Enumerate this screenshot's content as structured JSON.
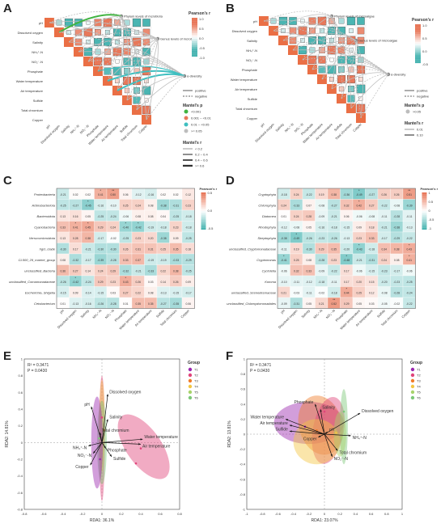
{
  "panel_labels": [
    "A",
    "B",
    "C",
    "D",
    "E",
    "F"
  ],
  "legend_text": {
    "pearson_title": "Pearson's r",
    "mantel_p_title": "Mantel's p",
    "mantel_r_title": "Mantel's r",
    "positive": "positive",
    "negative": "negative"
  },
  "panel_A": {
    "top_targets": [
      "Phylum levels of mcrobiota",
      "Genus levels of mcrobiota",
      "α-diversity"
    ],
    "colorbar_ticks": [
      "1.0",
      "0.5",
      "0.0",
      "-0.5",
      "-1.0"
    ],
    "mantel_p_levels": [
      "<0.001",
      "0.001 ~ <0.01",
      "0.01 ~ <0.05",
      ">= 0.05"
    ],
    "mantel_r_levels": [
      "< 0.2",
      "0.2 ~ 0.4",
      "0.4 ~ 0.6",
      ">= 0.6"
    ]
  },
  "panel_B": {
    "top_targets": [
      "Phylum levels of microalgae",
      "Genus levels of microalgae",
      "α-diversity"
    ],
    "colorbar_ticks": [
      "1.0",
      "0.5",
      "0.0",
      "-0.5"
    ],
    "mantel_p_levels": [
      ">0.05"
    ],
    "mantel_r_levels": [
      "0.01",
      "0.10"
    ]
  },
  "env_factors": [
    "pH",
    "Dissolved oxygen",
    "Salinity",
    "NH₄⁺-N",
    "NO₂⁻-N",
    "Phosphate",
    "Water temperature",
    "Air temperature",
    "Sulfide",
    "Total chromium",
    "Copper"
  ],
  "panel_C": {
    "rows": [
      "Proteobacteria",
      "Actinobacteriota",
      "Bacteroidota",
      "Cyanobacteria",
      "Verrucomicrobiota",
      "hgcI_clade",
      "CL500_29_marine_group",
      "unclassified_Bacteria",
      "unclassified_Comamonadaceae",
      "Escherichia_Shigella",
      "Cetobacterium"
    ],
    "values": [
      [
        -0.21,
        0.02,
        0.02,
        0.41,
        0.5,
        0.06,
        -0.12,
        -0.16,
        0.02,
        0.02,
        0.12
      ],
      [
        -0.25,
        -0.27,
        -0.45,
        -0.16,
        -0.1,
        0.25,
        0.24,
        0.08,
        -0.38,
        -0.31,
        0.23
      ],
      [
        0.13,
        0.16,
        0.05,
        -0.25,
        -0.24,
        -0.06,
        0.08,
        0.08,
        0.04,
        -0.25,
        -0.18
      ],
      [
        0.33,
        0.41,
        0.45,
        0.29,
        0.24,
        -0.4,
        -0.42,
        -0.19,
        -0.18,
        0.23,
        -0.18
      ],
      [
        0.13,
        0.28,
        0.38,
        -0.17,
        -0.02,
        -0.25,
        0.23,
        0.2,
        -0.38,
        0.09,
        -0.25
      ],
      [
        -0.3,
        0.17,
        -0.21,
        -0.3,
        -0.3,
        0.26,
        0.31,
        0.31,
        0.25,
        0.35,
        0.18
      ],
      [
        0.08,
        -0.32,
        -0.17,
        -0.39,
        -0.28,
        0.33,
        0.37,
        -0.19,
        -0.19,
        -0.33,
        -0.29
      ],
      [
        0.36,
        0.27,
        0.14,
        0.24,
        0.29,
        -0.32,
        -0.21,
        -0.33,
        0.22,
        0.38,
        -0.25
      ],
      [
        -0.26,
        -0.42,
        -0.24,
        0.29,
        0.23,
        0.43,
        0.26,
        0.03,
        0.14,
        0.26,
        0.09
      ],
      [
        -0.15,
        0.09,
        -0.14,
        -0.15,
        0.03,
        0.27,
        0.22,
        0.08,
        -0.13,
        -0.15,
        -0.17
      ],
      [
        0.01,
        -0.13,
        -0.16,
        -0.26,
        -0.28,
        0.01,
        0.35,
        0.35,
        -0.27,
        -0.35,
        0.06
      ]
    ],
    "colorbar_ticks": [
      "0.5",
      "0.0",
      "-0.5"
    ]
  },
  "panel_D": {
    "rows": [
      "Cryptophyta",
      "Chlorophyta",
      "Diatomea",
      "Rhodophyta",
      "Streptophyta",
      "unclassified_Cryptomonadaceae",
      "Cryptomonas",
      "Cyclotella",
      "Komma",
      "unclassified_Scenedesmaceae",
      "unclassified_Chlamydomonadales"
    ],
    "values": [
      [
        -0.18,
        0.24,
        -0.22,
        0.19,
        0.38,
        -0.36,
        -0.49,
        -0.27,
        0.26,
        0.26,
        0.51
      ],
      [
        0.24,
        -0.33,
        0.07,
        -0.08,
        -0.27,
        0.32,
        0.42,
        0.27,
        -0.22,
        -0.08,
        -0.39
      ],
      [
        0.01,
        0.24,
        0.28,
        -0.09,
        -0.21,
        0.06,
        -0.06,
        -0.08,
        -0.11,
        -0.28,
        -0.11
      ],
      [
        -0.12,
        -0.08,
        0.05,
        -0.16,
        -0.18,
        -0.15,
        0.09,
        0.18,
        -0.21,
        -0.38,
        -0.13
      ],
      [
        -0.38,
        -0.49,
        -0.26,
        -0.23,
        -0.26,
        -0.13,
        0.23,
        0.33,
        -0.17,
        -0.29,
        -0.22
      ],
      [
        -0.11,
        0.19,
        -0.3,
        0.29,
        0.35,
        -0.2,
        -0.43,
        -0.18,
        0.34,
        0.38,
        0.43
      ],
      [
        -0.41,
        0.25,
        0.08,
        -0.28,
        0.23,
        -0.48,
        -0.21,
        -0.31,
        0.24,
        0.08,
        0.41
      ],
      [
        -0.06,
        0.32,
        0.33,
        -0.09,
        -0.22,
        0.17,
        -0.06,
        -0.15,
        -0.23,
        -0.17,
        -0.06
      ],
      [
        -0.1,
        -0.11,
        -0.12,
        -0.18,
        -0.11,
        0.17,
        0.2,
        0.15,
        -0.2,
        -0.23,
        -0.25
      ],
      [
        0.21,
        -0.03,
        -0.11,
        -0.02,
        -0.18,
        0.44,
        0.25,
        0.12,
        -0.08,
        -0.28,
        -0.24
      ],
      [
        -0.09,
        -0.31,
        0.05,
        0.21,
        0.52,
        0.29,
        0.05,
        0.03,
        -0.05,
        -0.02,
        -0.22
      ]
    ],
    "colorbar_ticks": [
      "1",
      "0.5",
      "0",
      "-0.5",
      "-1"
    ]
  },
  "panel_E": {
    "stats": [
      "R² = 0.3471",
      "P = 0.0430"
    ],
    "xlabel": "RDA1: 36.1%",
    "ylabel": "RDA2: 14.81%",
    "x_ticks": [
      "-0.8",
      "-0.6",
      "-0.4",
      "-0.2",
      "0",
      "0.2",
      "0.4",
      "0.6",
      "0.8"
    ],
    "y_ticks": [
      "1",
      "0.8",
      "0.6",
      "0.4",
      "0.2",
      "0",
      "-0.2",
      "-0.4",
      "-0.6",
      "-0.8"
    ],
    "legend_title": "Group",
    "groups": [
      "T1",
      "T2",
      "T3",
      "T4",
      "T5",
      "T6"
    ],
    "vectors": [
      {
        "label": "pH",
        "x": -0.11,
        "y": 0.43
      },
      {
        "label": "Dissolved oxygen",
        "x": 0.06,
        "y": 0.58
      },
      {
        "label": "Salinity",
        "x": 0.06,
        "y": 0.28
      },
      {
        "label": "Water temperature",
        "x": 0.42,
        "y": 0.04
      },
      {
        "label": "Air temperature",
        "x": 0.4,
        "y": -0.02
      },
      {
        "label": "Total chromium",
        "x": -0.02,
        "y": 0.12
      },
      {
        "label": "NH₄⁺-N",
        "x": -0.14,
        "y": -0.04
      },
      {
        "label": "NO₂⁻-N",
        "x": -0.09,
        "y": -0.13
      },
      {
        "label": "Phosphate",
        "x": 0.04,
        "y": -0.07
      },
      {
        "label": "Sulfide",
        "x": 0.1,
        "y": -0.17
      },
      {
        "label": "Copper",
        "x": -0.12,
        "y": -0.27
      }
    ]
  },
  "panel_F": {
    "stats": [
      "R² = 0.3471",
      "P = 0.0430"
    ],
    "xlabel": "RDA1: 23.07%",
    "ylabel": "RDA2: 13.81%",
    "x_ticks": [
      "-1",
      "-0.8",
      "-0.6",
      "-0.4",
      "-0.2",
      "0",
      "0.2",
      "0.4",
      "0.6",
      "0.8",
      "1"
    ],
    "y_ticks": [
      "1",
      "0.8",
      "0.6",
      "0.4",
      "0.2",
      "0",
      "-0.2",
      "-0.4",
      "-0.6",
      "-0.8",
      "-1"
    ],
    "legend_title": "Group",
    "groups": [
      "T1",
      "T2",
      "T3",
      "T4",
      "T5",
      "T6"
    ],
    "vectors": [
      {
        "label": "Phosphate",
        "x": -0.12,
        "y": 0.4
      },
      {
        "label": "Salinity",
        "x": -0.05,
        "y": 0.33
      },
      {
        "label": "Dissolved oxygen",
        "x": 0.46,
        "y": 0.28
      },
      {
        "label": "Water temperature",
        "x": -0.5,
        "y": 0.2
      },
      {
        "label": "Air temperature",
        "x": -0.45,
        "y": 0.12
      },
      {
        "label": "Sulfide",
        "x": -0.45,
        "y": 0.04
      },
      {
        "label": "Copper",
        "x": -0.08,
        "y": -0.04
      },
      {
        "label": "pH",
        "x": 0.04,
        "y": 0.03
      },
      {
        "label": "NH₄⁺-N",
        "x": 0.34,
        "y": -0.02
      },
      {
        "label": "Total chromium",
        "x": 0.17,
        "y": -0.22
      },
      {
        "label": "NO₂⁻-N",
        "x": 0.1,
        "y": -0.3
      }
    ]
  },
  "group_colors": [
    "#9b27b0",
    "#e0457b",
    "#f07c2a",
    "#f3c642",
    "#a8d36b",
    "#7cc878"
  ],
  "colors": {
    "positive": "#e8785a",
    "negative": "#4ab5b2",
    "mantel_green": "#41b441",
    "mantel_teal": "#3fbfc0",
    "mantel_grey": "#bdbdbd"
  },
  "chart_data": [
    {
      "type": "heatmap",
      "panel": "C",
      "title": "",
      "xlabel": "",
      "ylabel": "",
      "note": "Pearson's r between bacterial taxa (rows) and environmental factors (columns); values as in panel_C.values"
    },
    {
      "type": "heatmap",
      "panel": "D",
      "title": "",
      "note": "Pearson's r between microalgal taxa and environmental factors; values as in panel_D.values"
    },
    {
      "type": "scatter",
      "panel": "E",
      "xlabel": "RDA1: 36.1%",
      "ylabel": "RDA2: 14.81%",
      "xlim": [
        -0.8,
        0.8
      ],
      "ylim": [
        -0.8,
        1.0
      ]
    },
    {
      "type": "scatter",
      "panel": "F",
      "xlabel": "RDA1: 23.07%",
      "ylabel": "RDA2: 13.81%",
      "xlim": [
        -1.0,
        1.0
      ],
      "ylim": [
        -1.0,
        1.0
      ]
    }
  ]
}
